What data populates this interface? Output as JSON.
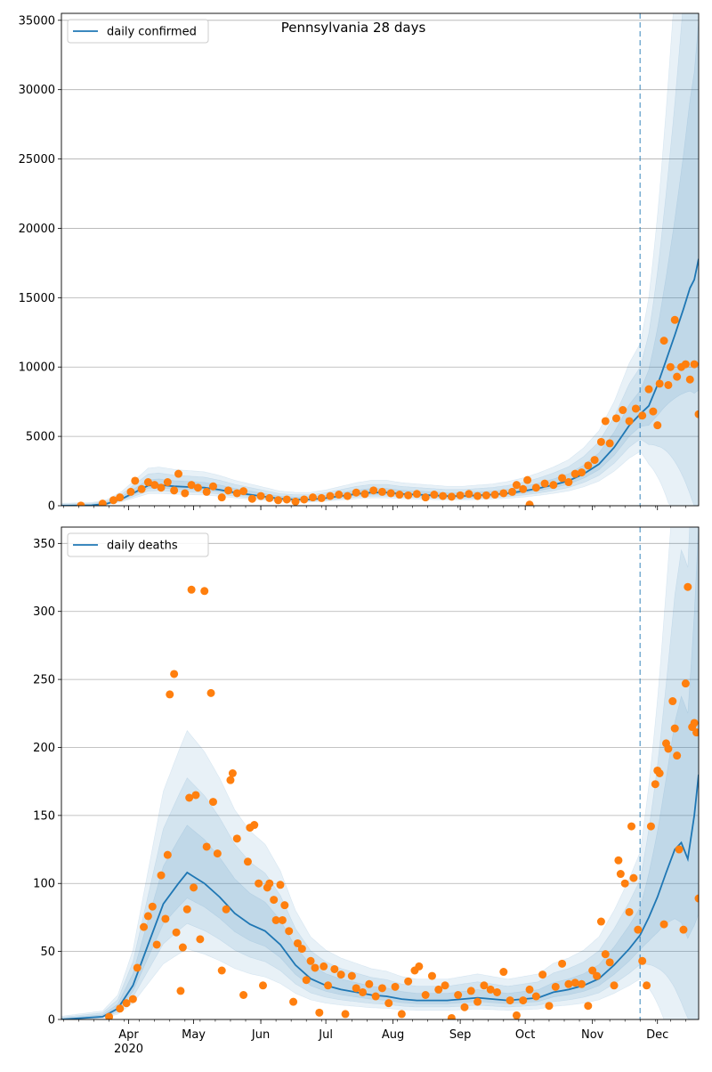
{
  "figure": {
    "title": "Pennsylvania 28 days"
  },
  "colors": {
    "line": "#1f77b4",
    "points": "#ff7f0e",
    "band": "#1f77b4",
    "grid": "#b0b0b0",
    "cutoff": "#1f77b4"
  },
  "chart_data": [
    {
      "type": "line",
      "title": "Pennsylvania 28 days",
      "legend": "daily confirmed",
      "legend_position": "top-left",
      "grid": "y",
      "x_range": [
        "2020-03-01",
        "2020-12-20"
      ],
      "forecast_start": "2020-11-23",
      "ylim": [
        0,
        35500
      ],
      "y_ticks": [
        0,
        5000,
        10000,
        15000,
        20000,
        25000,
        30000,
        35000
      ],
      "series_line": [
        [
          "2020-03-01",
          0
        ],
        [
          "2020-03-15",
          30
        ],
        [
          "2020-03-22",
          150
        ],
        [
          "2020-03-29",
          500
        ],
        [
          "2020-04-05",
          1050
        ],
        [
          "2020-04-10",
          1450
        ],
        [
          "2020-04-15",
          1500
        ],
        [
          "2020-04-22",
          1400
        ],
        [
          "2020-04-29",
          1350
        ],
        [
          "2020-05-06",
          1300
        ],
        [
          "2020-05-13",
          1150
        ],
        [
          "2020-05-20",
          950
        ],
        [
          "2020-05-27",
          800
        ],
        [
          "2020-06-03",
          650
        ],
        [
          "2020-06-10",
          500
        ],
        [
          "2020-06-17",
          450
        ],
        [
          "2020-06-24",
          450
        ],
        [
          "2020-07-01",
          550
        ],
        [
          "2020-07-08",
          700
        ],
        [
          "2020-07-15",
          850
        ],
        [
          "2020-07-22",
          950
        ],
        [
          "2020-07-29",
          950
        ],
        [
          "2020-08-05",
          850
        ],
        [
          "2020-08-12",
          800
        ],
        [
          "2020-08-19",
          750
        ],
        [
          "2020-08-26",
          700
        ],
        [
          "2020-09-02",
          700
        ],
        [
          "2020-09-09",
          750
        ],
        [
          "2020-09-16",
          800
        ],
        [
          "2020-09-23",
          900
        ],
        [
          "2020-09-30",
          1050
        ],
        [
          "2020-10-07",
          1250
        ],
        [
          "2020-10-14",
          1500
        ],
        [
          "2020-10-21",
          1800
        ],
        [
          "2020-10-28",
          2300
        ],
        [
          "2020-11-04",
          3000
        ],
        [
          "2020-11-11",
          4200
        ],
        [
          "2020-11-18",
          5800
        ],
        [
          "2020-11-23",
          6600
        ],
        [
          "2020-11-27",
          7200
        ],
        [
          "2020-12-01",
          8700
        ],
        [
          "2020-12-05",
          10500
        ],
        [
          "2020-12-09",
          12300
        ],
        [
          "2020-12-13",
          14200
        ],
        [
          "2020-12-16",
          15700
        ],
        [
          "2020-12-18",
          16300
        ],
        [
          "2020-12-20",
          17800
        ]
      ],
      "series_points": [
        [
          "2020-03-10",
          10
        ],
        [
          "2020-03-20",
          150
        ],
        [
          "2020-03-25",
          400
        ],
        [
          "2020-03-28",
          600
        ],
        [
          "2020-04-02",
          1000
        ],
        [
          "2020-04-04",
          1800
        ],
        [
          "2020-04-07",
          1200
        ],
        [
          "2020-04-10",
          1700
        ],
        [
          "2020-04-13",
          1500
        ],
        [
          "2020-04-16",
          1300
        ],
        [
          "2020-04-19",
          1700
        ],
        [
          "2020-04-22",
          1100
        ],
        [
          "2020-04-24",
          2300
        ],
        [
          "2020-04-27",
          900
        ],
        [
          "2020-04-30",
          1500
        ],
        [
          "2020-05-03",
          1300
        ],
        [
          "2020-05-07",
          1000
        ],
        [
          "2020-05-10",
          1400
        ],
        [
          "2020-05-14",
          600
        ],
        [
          "2020-05-17",
          1100
        ],
        [
          "2020-05-21",
          900
        ],
        [
          "2020-05-24",
          1050
        ],
        [
          "2020-05-28",
          500
        ],
        [
          "2020-06-01",
          700
        ],
        [
          "2020-06-05",
          550
        ],
        [
          "2020-06-09",
          400
        ],
        [
          "2020-06-13",
          450
        ],
        [
          "2020-06-17",
          300
        ],
        [
          "2020-06-21",
          450
        ],
        [
          "2020-06-25",
          600
        ],
        [
          "2020-06-29",
          550
        ],
        [
          "2020-07-03",
          700
        ],
        [
          "2020-07-07",
          800
        ],
        [
          "2020-07-11",
          700
        ],
        [
          "2020-07-15",
          950
        ],
        [
          "2020-07-19",
          850
        ],
        [
          "2020-07-23",
          1100
        ],
        [
          "2020-07-27",
          1000
        ],
        [
          "2020-07-31",
          900
        ],
        [
          "2020-08-04",
          800
        ],
        [
          "2020-08-08",
          750
        ],
        [
          "2020-08-12",
          850
        ],
        [
          "2020-08-16",
          600
        ],
        [
          "2020-08-20",
          800
        ],
        [
          "2020-08-24",
          700
        ],
        [
          "2020-08-28",
          650
        ],
        [
          "2020-09-01",
          750
        ],
        [
          "2020-09-05",
          850
        ],
        [
          "2020-09-09",
          700
        ],
        [
          "2020-09-13",
          750
        ],
        [
          "2020-09-17",
          800
        ],
        [
          "2020-09-21",
          900
        ],
        [
          "2020-09-25",
          1000
        ],
        [
          "2020-09-27",
          1500
        ],
        [
          "2020-09-30",
          1200
        ],
        [
          "2020-10-02",
          1850
        ],
        [
          "2020-10-03",
          80
        ],
        [
          "2020-10-06",
          1300
        ],
        [
          "2020-10-10",
          1600
        ],
        [
          "2020-10-14",
          1500
        ],
        [
          "2020-10-18",
          2000
        ],
        [
          "2020-10-21",
          1700
        ],
        [
          "2020-10-24",
          2300
        ],
        [
          "2020-10-27",
          2400
        ],
        [
          "2020-10-30",
          2900
        ],
        [
          "2020-11-02",
          3300
        ],
        [
          "2020-11-05",
          4600
        ],
        [
          "2020-11-07",
          6100
        ],
        [
          "2020-11-09",
          4500
        ],
        [
          "2020-11-12",
          6300
        ],
        [
          "2020-11-15",
          6900
        ],
        [
          "2020-11-18",
          6100
        ],
        [
          "2020-11-21",
          7000
        ],
        [
          "2020-11-24",
          6500
        ],
        [
          "2020-11-27",
          8400
        ],
        [
          "2020-11-29",
          6800
        ],
        [
          "2020-12-01",
          5800
        ],
        [
          "2020-12-02",
          8800
        ],
        [
          "2020-12-04",
          11900
        ],
        [
          "2020-12-06",
          8700
        ],
        [
          "2020-12-07",
          10000
        ],
        [
          "2020-12-09",
          13400
        ],
        [
          "2020-12-10",
          9300
        ],
        [
          "2020-12-12",
          10000
        ],
        [
          "2020-12-14",
          10200
        ],
        [
          "2020-12-16",
          9100
        ],
        [
          "2020-12-18",
          10200
        ],
        [
          "2020-12-20",
          6600
        ]
      ]
    },
    {
      "type": "line",
      "title": "",
      "legend": "daily deaths",
      "legend_position": "top-left",
      "grid": "y",
      "x_range": [
        "2020-03-01",
        "2020-12-20"
      ],
      "forecast_start": "2020-11-23",
      "ylim": [
        0,
        362
      ],
      "y_ticks": [
        0,
        50,
        100,
        150,
        200,
        250,
        300,
        350
      ],
      "x_ticks": [
        "Apr",
        "May",
        "Jun",
        "Jul",
        "Aug",
        "Sep",
        "Oct",
        "Nov",
        "Dec"
      ],
      "x_tick_year": "2020",
      "series_line": [
        [
          "2020-03-01",
          0
        ],
        [
          "2020-03-20",
          2
        ],
        [
          "2020-03-27",
          8
        ],
        [
          "2020-04-03",
          25
        ],
        [
          "2020-04-10",
          55
        ],
        [
          "2020-04-17",
          85
        ],
        [
          "2020-04-24",
          100
        ],
        [
          "2020-04-28",
          108
        ],
        [
          "2020-05-01",
          105
        ],
        [
          "2020-05-06",
          100
        ],
        [
          "2020-05-13",
          90
        ],
        [
          "2020-05-20",
          78
        ],
        [
          "2020-05-27",
          70
        ],
        [
          "2020-06-03",
          65
        ],
        [
          "2020-06-10",
          55
        ],
        [
          "2020-06-17",
          40
        ],
        [
          "2020-06-24",
          30
        ],
        [
          "2020-07-01",
          25
        ],
        [
          "2020-07-08",
          22
        ],
        [
          "2020-07-15",
          20
        ],
        [
          "2020-07-22",
          18
        ],
        [
          "2020-07-29",
          17
        ],
        [
          "2020-08-05",
          15
        ],
        [
          "2020-08-12",
          14
        ],
        [
          "2020-08-19",
          14
        ],
        [
          "2020-08-26",
          14
        ],
        [
          "2020-09-02",
          15
        ],
        [
          "2020-09-09",
          16
        ],
        [
          "2020-09-16",
          15
        ],
        [
          "2020-09-23",
          14
        ],
        [
          "2020-09-30",
          15
        ],
        [
          "2020-10-07",
          16
        ],
        [
          "2020-10-14",
          20
        ],
        [
          "2020-10-21",
          22
        ],
        [
          "2020-10-28",
          25
        ],
        [
          "2020-11-04",
          30
        ],
        [
          "2020-11-11",
          40
        ],
        [
          "2020-11-18",
          52
        ],
        [
          "2020-11-23",
          62
        ],
        [
          "2020-11-27",
          75
        ],
        [
          "2020-12-01",
          90
        ],
        [
          "2020-12-05",
          108
        ],
        [
          "2020-12-09",
          125
        ],
        [
          "2020-12-12",
          130
        ],
        [
          "2020-12-15",
          118
        ],
        [
          "2020-12-18",
          150
        ],
        [
          "2020-12-20",
          180
        ]
      ],
      "series_points": [
        [
          "2020-03-23",
          2
        ],
        [
          "2020-03-28",
          8
        ],
        [
          "2020-03-31",
          12
        ],
        [
          "2020-04-03",
          15
        ],
        [
          "2020-04-05",
          38
        ],
        [
          "2020-04-08",
          68
        ],
        [
          "2020-04-10",
          76
        ],
        [
          "2020-04-12",
          83
        ],
        [
          "2020-04-14",
          55
        ],
        [
          "2020-04-16",
          106
        ],
        [
          "2020-04-18",
          74
        ],
        [
          "2020-04-19",
          121
        ],
        [
          "2020-04-20",
          239
        ],
        [
          "2020-04-22",
          254
        ],
        [
          "2020-04-23",
          64
        ],
        [
          "2020-04-25",
          21
        ],
        [
          "2020-04-26",
          53
        ],
        [
          "2020-04-28",
          81
        ],
        [
          "2020-04-29",
          163
        ],
        [
          "2020-04-30",
          316
        ],
        [
          "2020-05-01",
          97
        ],
        [
          "2020-05-02",
          165
        ],
        [
          "2020-05-04",
          59
        ],
        [
          "2020-05-06",
          315
        ],
        [
          "2020-05-07",
          127
        ],
        [
          "2020-05-09",
          240
        ],
        [
          "2020-05-10",
          160
        ],
        [
          "2020-05-12",
          122
        ],
        [
          "2020-05-14",
          36
        ],
        [
          "2020-05-16",
          81
        ],
        [
          "2020-05-18",
          176
        ],
        [
          "2020-05-19",
          181
        ],
        [
          "2020-05-21",
          133
        ],
        [
          "2020-05-24",
          18
        ],
        [
          "2020-05-26",
          116
        ],
        [
          "2020-05-27",
          141
        ],
        [
          "2020-05-29",
          143
        ],
        [
          "2020-05-31",
          100
        ],
        [
          "2020-06-02",
          25
        ],
        [
          "2020-06-04",
          97
        ],
        [
          "2020-06-05",
          100
        ],
        [
          "2020-06-07",
          88
        ],
        [
          "2020-06-08",
          73
        ],
        [
          "2020-06-10",
          99
        ],
        [
          "2020-06-11",
          73
        ],
        [
          "2020-06-12",
          84
        ],
        [
          "2020-06-14",
          65
        ],
        [
          "2020-06-16",
          13
        ],
        [
          "2020-06-18",
          56
        ],
        [
          "2020-06-20",
          52
        ],
        [
          "2020-06-22",
          29
        ],
        [
          "2020-06-24",
          43
        ],
        [
          "2020-06-26",
          38
        ],
        [
          "2020-06-28",
          5
        ],
        [
          "2020-06-30",
          39
        ],
        [
          "2020-07-02",
          25
        ],
        [
          "2020-07-05",
          37
        ],
        [
          "2020-07-08",
          33
        ],
        [
          "2020-07-10",
          4
        ],
        [
          "2020-07-13",
          32
        ],
        [
          "2020-07-15",
          23
        ],
        [
          "2020-07-18",
          20
        ],
        [
          "2020-07-21",
          26
        ],
        [
          "2020-07-24",
          17
        ],
        [
          "2020-07-27",
          23
        ],
        [
          "2020-07-30",
          12
        ],
        [
          "2020-08-02",
          24
        ],
        [
          "2020-08-05",
          4
        ],
        [
          "2020-08-08",
          28
        ],
        [
          "2020-08-11",
          36
        ],
        [
          "2020-08-13",
          39
        ],
        [
          "2020-08-16",
          18
        ],
        [
          "2020-08-19",
          32
        ],
        [
          "2020-08-22",
          22
        ],
        [
          "2020-08-25",
          25
        ],
        [
          "2020-08-28",
          1
        ],
        [
          "2020-08-31",
          18
        ],
        [
          "2020-09-03",
          9
        ],
        [
          "2020-09-06",
          21
        ],
        [
          "2020-09-09",
          13
        ],
        [
          "2020-09-12",
          25
        ],
        [
          "2020-09-15",
          22
        ],
        [
          "2020-09-18",
          20
        ],
        [
          "2020-09-21",
          35
        ],
        [
          "2020-09-24",
          14
        ],
        [
          "2020-09-27",
          3
        ],
        [
          "2020-09-30",
          14
        ],
        [
          "2020-10-03",
          22
        ],
        [
          "2020-10-06",
          17
        ],
        [
          "2020-10-09",
          33
        ],
        [
          "2020-10-12",
          10
        ],
        [
          "2020-10-15",
          24
        ],
        [
          "2020-10-18",
          41
        ],
        [
          "2020-10-21",
          26
        ],
        [
          "2020-10-24",
          27
        ],
        [
          "2020-10-27",
          26
        ],
        [
          "2020-10-30",
          10
        ],
        [
          "2020-11-01",
          36
        ],
        [
          "2020-11-03",
          32
        ],
        [
          "2020-11-05",
          72
        ],
        [
          "2020-11-07",
          48
        ],
        [
          "2020-11-09",
          42
        ],
        [
          "2020-11-11",
          25
        ],
        [
          "2020-11-13",
          117
        ],
        [
          "2020-11-14",
          107
        ],
        [
          "2020-11-16",
          100
        ],
        [
          "2020-11-18",
          79
        ],
        [
          "2020-11-19",
          142
        ],
        [
          "2020-11-20",
          104
        ],
        [
          "2020-11-22",
          66
        ],
        [
          "2020-11-24",
          43
        ],
        [
          "2020-11-26",
          25
        ],
        [
          "2020-11-28",
          142
        ],
        [
          "2020-11-30",
          173
        ],
        [
          "2020-12-01",
          183
        ],
        [
          "2020-12-02",
          181
        ],
        [
          "2020-12-04",
          70
        ],
        [
          "2020-12-05",
          203
        ],
        [
          "2020-12-06",
          199
        ],
        [
          "2020-12-08",
          234
        ],
        [
          "2020-12-09",
          214
        ],
        [
          "2020-12-10",
          194
        ],
        [
          "2020-12-11",
          125
        ],
        [
          "2020-12-13",
          66
        ],
        [
          "2020-12-14",
          247
        ],
        [
          "2020-12-15",
          318
        ],
        [
          "2020-12-17",
          215
        ],
        [
          "2020-12-18",
          218
        ],
        [
          "2020-12-19",
          211
        ],
        [
          "2020-12-20",
          89
        ]
      ]
    }
  ]
}
